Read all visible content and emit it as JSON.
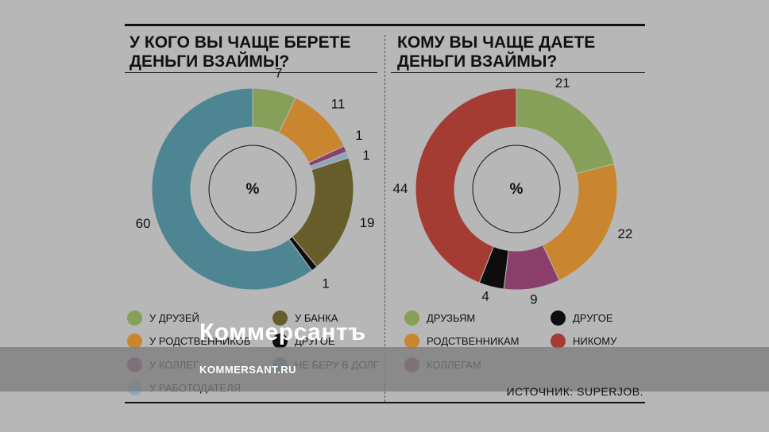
{
  "left": {
    "title": "У КОГО ВЫ ЧАЩЕ БЕРЕТЕ\nДЕНЬГИ ВЗАЙМЫ?",
    "center_label": "%"
  },
  "right": {
    "title": "КОМУ ВЫ ЧАЩЕ ДАЕТЕ\nДЕНЬГИ ВЗАЙМЫ?",
    "center_label": "%"
  },
  "chart_data": [
    {
      "type": "pie",
      "title": "У КОГО ВЫ ЧАЩЕ БЕРЕТЕ ДЕНЬГИ ВЗАЙМЫ?",
      "unit": "%",
      "slices": [
        {
          "label": "У ДРУЗЕЙ",
          "value": 7,
          "value_label": "7",
          "color": "#86a05a"
        },
        {
          "label": "У РОДСТВЕННИКОВ",
          "value": 11,
          "value_label": "11",
          "color": "#c9862f"
        },
        {
          "label": "У КОЛЛЕГ",
          "value": 1,
          "value_label": "1",
          "color": "#8a3f6c"
        },
        {
          "label": "У РАБОТОДАТЕЛЯ",
          "value": 1,
          "value_label": "1",
          "color": "#8aa8bb"
        },
        {
          "label": "У БАНКА",
          "value": 19,
          "value_label": "19",
          "color": "#665d2b"
        },
        {
          "label": "ДРУГОЕ",
          "value": 1,
          "value_label": "1",
          "color": "#0d0d0d"
        },
        {
          "label": "НЕ БЕРУ В ДОЛГ",
          "value": 60,
          "value_label": "60",
          "color": "#4e8593"
        }
      ]
    },
    {
      "type": "pie",
      "title": "КОМУ ВЫ ЧАЩЕ ДАЕТЕ ДЕНЬГИ ВЗАЙМЫ?",
      "unit": "%",
      "slices": [
        {
          "label": "ДРУЗЬЯМ",
          "value": 21,
          "value_label": "21",
          "color": "#86a05a"
        },
        {
          "label": "РОДСТВЕННИКАМ",
          "value": 22,
          "value_label": "22",
          "color": "#c9862f"
        },
        {
          "label": "КОЛЛЕГАМ",
          "value": 9,
          "value_label": "9",
          "color": "#8a3f6c"
        },
        {
          "label": "ДРУГОЕ",
          "value": 4,
          "value_label": "4",
          "color": "#0d0d0d"
        },
        {
          "label": "НИКОМУ",
          "value": 44,
          "value_label": "44",
          "color": "#a53c34"
        }
      ]
    }
  ],
  "legend_left": [
    {
      "label": "У ДРУЗЕЙ",
      "color": "#86a05a"
    },
    {
      "label": "У РОДСТВЕННИКОВ",
      "color": "#c9862f"
    },
    {
      "label": "У КОЛЛЕГ",
      "color": "#8a3f6c"
    },
    {
      "label": "У РАБОТОДАТЕЛЯ",
      "color": "#8aa8bb"
    },
    {
      "label": "У БАНКА",
      "color": "#665d2b"
    },
    {
      "label": "ДРУГОЕ",
      "color": "#0d0d0d"
    },
    {
      "label": "НЕ БЕРУ В ДОЛГ",
      "color": "#4e8593"
    }
  ],
  "legend_right": [
    {
      "label": "ДРУЗЬЯМ",
      "color": "#86a05a"
    },
    {
      "label": "РОДСТВЕННИКАМ",
      "color": "#c9862f"
    },
    {
      "label": "КОЛЛЕГАМ",
      "color": "#8a3f6c"
    },
    {
      "label": "ДРУГОЕ",
      "color": "#0d0d0d"
    },
    {
      "label": "НИКОМУ",
      "color": "#a53c34"
    }
  ],
  "source": "ИСТОЧНИК: SUPERJOB.",
  "watermark": {
    "logo": "Коммерсантъ",
    "url": "KOMMERSANT.RU"
  }
}
